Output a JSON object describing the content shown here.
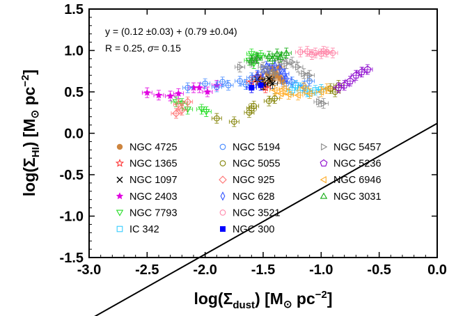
{
  "chart_data": {
    "type": "scatter",
    "xlabel": {
      "base": "log(Σ",
      "sub": "dust",
      "close": ")",
      "unit_open": " [M",
      "sun": "⊙",
      "unit_mid": " pc",
      "sup": "−2",
      "unit_close": "]"
    },
    "ylabel": {
      "base": "log(Σ",
      "sub": "HI",
      "close": ")",
      "unit_open": " [M",
      "sun": "⊙",
      "unit_mid": " pc",
      "sup": "−2",
      "unit_close": "]"
    },
    "xlim": [
      -3.0,
      0.0
    ],
    "ylim": [
      -1.5,
      1.5
    ],
    "xticks": [
      -3.0,
      -2.5,
      -2.0,
      -1.5,
      -1.0,
      -0.5,
      0.0
    ],
    "xtick_labels": [
      "-3.0",
      "-2.5",
      "-2.0",
      "-1.5",
      "-1.0",
      "-0.5",
      "0.0"
    ],
    "yticks": [
      -1.5,
      -1.0,
      -0.5,
      0.0,
      0.5,
      1.0,
      1.5
    ],
    "ytick_labels": [
      "-1.5",
      "-1.0",
      "-0.5",
      "0.0",
      "0.5",
      "1.0",
      "1.5"
    ],
    "grid": false,
    "legend_placement": "lower-center",
    "fit": {
      "intercept": 0.12,
      "slope": 0.79,
      "text_line1": "y = (0.12 ±0.03) + (0.79 ±0.04)",
      "text_line2_prefix": "R = 0.25, ",
      "text_line2_sigma": "σ",
      "text_line2_suffix": "= 0.15"
    },
    "series": [
      {
        "name": "NGC 4725",
        "color": "#cd853f",
        "marker": "filled-circle",
        "points": [
          [
            -1.5,
            0.6
          ],
          [
            -1.46,
            0.72
          ],
          [
            -1.42,
            0.78
          ],
          [
            -1.38,
            0.7
          ],
          [
            -1.35,
            0.66
          ],
          [
            -1.44,
            0.64
          ],
          [
            -1.4,
            0.74
          ],
          [
            -1.52,
            0.68
          ],
          [
            -1.36,
            0.8
          ],
          [
            -1.48,
            0.58
          ],
          [
            -1.41,
            0.69
          ],
          [
            -1.33,
            0.62
          ]
        ]
      },
      {
        "name": "NGC 1365",
        "color": "#ff3333",
        "marker": "star",
        "points": [
          [
            -1.6,
            0.62
          ],
          [
            -1.55,
            0.68
          ],
          [
            -1.48,
            0.55
          ]
        ]
      },
      {
        "name": "NGC 1097",
        "color": "#000000",
        "marker": "x",
        "points": [
          [
            -1.55,
            0.65
          ],
          [
            -1.5,
            0.59
          ],
          [
            -1.42,
            0.6
          ],
          [
            -1.45,
            0.66
          ]
        ]
      },
      {
        "name": "NGC 2403",
        "color": "#e000e0",
        "marker": "filled-star",
        "points": [
          [
            -2.5,
            0.49
          ],
          [
            -2.4,
            0.46
          ],
          [
            -2.3,
            0.45
          ],
          [
            -2.23,
            0.48
          ],
          [
            -2.1,
            0.55
          ],
          [
            -2.05,
            0.55
          ],
          [
            -1.98,
            0.5
          ],
          [
            -1.9,
            0.58
          ]
        ]
      },
      {
        "name": "NGC 7793",
        "color": "#22dd22",
        "marker": "tri-down",
        "points": [
          [
            -2.2,
            0.36
          ],
          [
            -2.15,
            0.29
          ],
          [
            -2.03,
            0.29
          ],
          [
            -1.99,
            0.26
          ],
          [
            -1.6,
            0.96
          ],
          [
            -1.56,
            0.92
          ],
          [
            -1.62,
            0.88
          ],
          [
            -1.52,
            0.94
          ],
          [
            -1.58,
            0.84
          ],
          [
            -2.25,
            0.38
          ]
        ]
      },
      {
        "name": "IC 342",
        "color": "#33ccff",
        "marker": "square",
        "points": [
          [
            -1.25,
            0.52
          ],
          [
            -1.18,
            0.55
          ],
          [
            -1.1,
            0.48
          ],
          [
            -1.05,
            0.52
          ],
          [
            -1.22,
            0.58
          ],
          [
            -1.12,
            0.5
          ],
          [
            -1.0,
            0.53
          ]
        ]
      },
      {
        "name": "NGC 5194",
        "color": "#4488ff",
        "marker": "circle",
        "points": [
          [
            -2.15,
            0.55
          ],
          [
            -2.0,
            0.6
          ],
          [
            -1.85,
            0.62
          ],
          [
            -1.8,
            0.58
          ],
          [
            -1.7,
            0.63
          ],
          [
            -1.65,
            0.59
          ],
          [
            -1.6,
            0.67
          ],
          [
            -1.3,
            0.6
          ],
          [
            -1.25,
            0.62
          ],
          [
            -1.15,
            0.57
          ],
          [
            -1.1,
            0.63
          ],
          [
            -1.9,
            0.56
          ]
        ]
      },
      {
        "name": "NGC 5055",
        "color": "#808000",
        "marker": "circle",
        "points": [
          [
            -1.9,
            0.18
          ],
          [
            -1.75,
            0.14
          ],
          [
            -1.62,
            0.25
          ],
          [
            -1.6,
            0.3
          ],
          [
            -1.4,
            0.42
          ],
          [
            -0.92,
            0.54
          ],
          [
            -0.88,
            0.5
          ],
          [
            -0.85,
            0.58
          ],
          [
            -1.58,
            0.33
          ],
          [
            -1.45,
            0.39
          ]
        ]
      },
      {
        "name": "NGC 925",
        "color": "#ff7777",
        "marker": "diamond",
        "points": [
          [
            -2.25,
            0.24
          ],
          [
            -2.2,
            0.28
          ],
          [
            -2.23,
            0.35
          ],
          [
            -2.15,
            0.38
          ]
        ]
      },
      {
        "name": "NGC 628",
        "color": "#3355ff",
        "marker": "thin-diamond",
        "points": [
          [
            -1.55,
            0.7
          ],
          [
            -1.5,
            0.74
          ],
          [
            -1.45,
            0.78
          ],
          [
            -1.4,
            0.82
          ],
          [
            -1.35,
            0.77
          ],
          [
            -1.32,
            0.72
          ],
          [
            -1.3,
            0.66
          ],
          [
            -1.47,
            0.81
          ]
        ]
      },
      {
        "name": "NGC 3521",
        "color": "#ff88aa",
        "marker": "circle",
        "points": [
          [
            -1.18,
            0.98
          ],
          [
            -1.12,
            0.99
          ],
          [
            -1.05,
            0.97
          ],
          [
            -1.0,
            0.96
          ],
          [
            -0.95,
            0.98
          ],
          [
            -0.9,
            0.97
          ],
          [
            -1.08,
            0.95
          ],
          [
            -0.98,
            0.99
          ]
        ]
      },
      {
        "name": "NGC 300",
        "color": "#0000ff",
        "marker": "filled-square",
        "points": [
          [
            -1.6,
            0.55
          ],
          [
            -1.52,
            0.58
          ]
        ]
      },
      {
        "name": "NGC 5457",
        "color": "#888888",
        "marker": "tri-right",
        "points": [
          [
            -1.7,
            0.8
          ],
          [
            -1.6,
            0.86
          ],
          [
            -1.55,
            0.9
          ],
          [
            -1.5,
            0.8
          ],
          [
            -1.45,
            0.75
          ],
          [
            -1.4,
            0.72
          ],
          [
            -1.35,
            0.88
          ],
          [
            -1.3,
            0.84
          ],
          [
            -1.25,
            0.86
          ],
          [
            -1.2,
            0.8
          ],
          [
            -1.15,
            0.72
          ],
          [
            -1.1,
            0.7
          ],
          [
            -1.02,
            0.38
          ],
          [
            -0.98,
            0.36
          ]
        ]
      },
      {
        "name": "NGC 5236",
        "color": "#8800cc",
        "marker": "pentagon",
        "points": [
          [
            -0.8,
            0.58
          ],
          [
            -0.75,
            0.63
          ],
          [
            -0.7,
            0.7
          ],
          [
            -0.65,
            0.74
          ],
          [
            -0.6,
            0.77
          ],
          [
            -0.85,
            0.55
          ]
        ]
      },
      {
        "name": "NGC 6946",
        "color": "#ffaa22",
        "marker": "tri-left",
        "points": [
          [
            -1.4,
            0.52
          ],
          [
            -1.35,
            0.48
          ],
          [
            -1.28,
            0.47
          ],
          [
            -1.2,
            0.46
          ],
          [
            -1.1,
            0.48
          ],
          [
            -1.0,
            0.5
          ],
          [
            -0.95,
            0.54
          ],
          [
            -1.32,
            0.54
          ],
          [
            -1.15,
            0.55
          ]
        ]
      },
      {
        "name": "NGC 3031",
        "color": "#11aa11",
        "marker": "tri-up",
        "points": [
          [
            -1.6,
            0.88
          ],
          [
            -1.55,
            0.91
          ],
          [
            -1.45,
            0.93
          ],
          [
            -1.38,
            0.96
          ],
          [
            -1.35,
            0.92
          ],
          [
            -1.3,
            0.97
          ],
          [
            -1.42,
            0.9
          ]
        ]
      }
    ]
  }
}
